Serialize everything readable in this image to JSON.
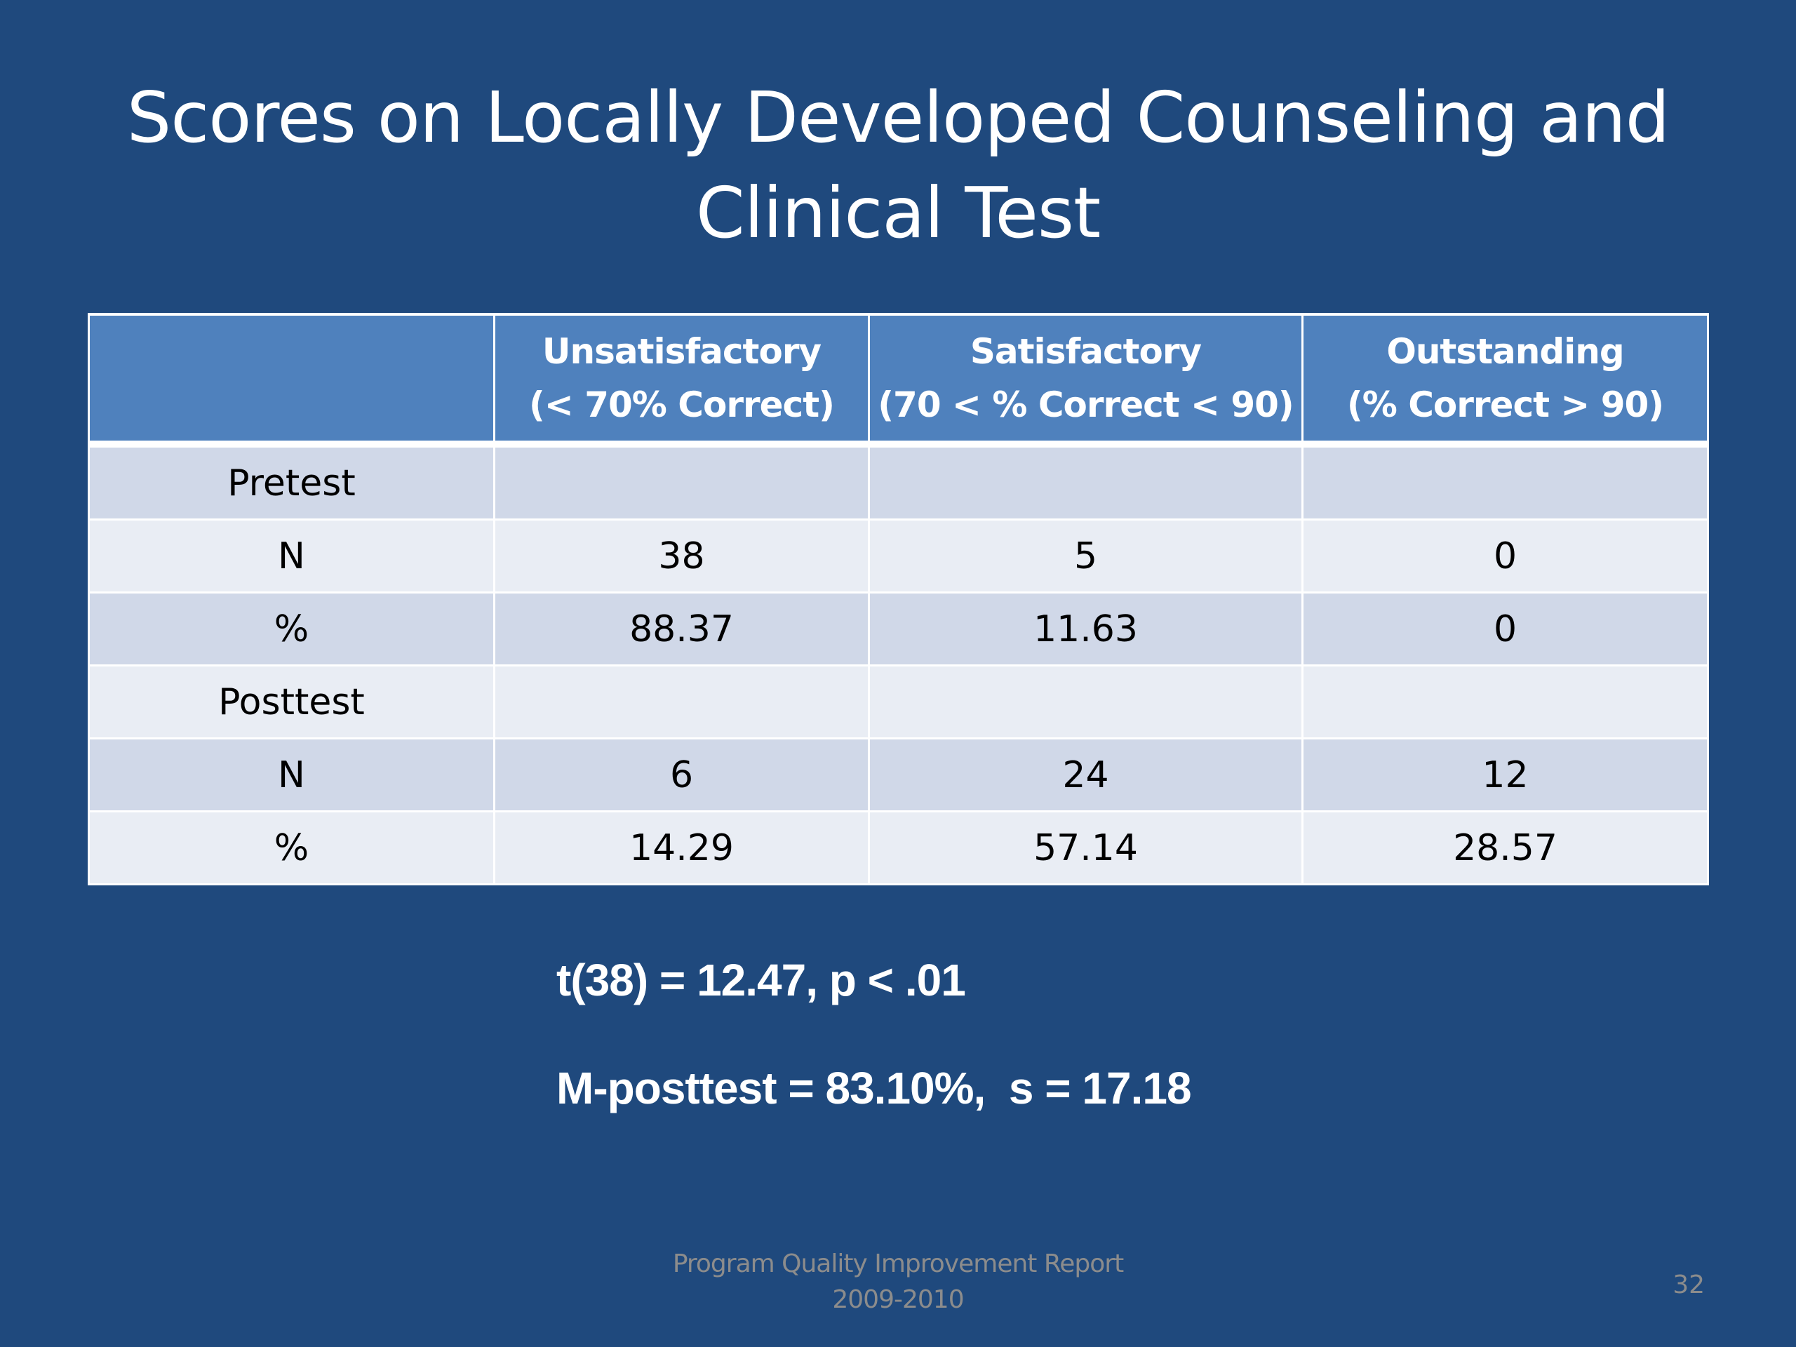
{
  "slide": {
    "title_lines": [
      "Scores on Locally Developed Counseling and",
      "Clinical Test"
    ],
    "table": {
      "headers": [
        {
          "line1": "",
          "line2": ""
        },
        {
          "line1": "Unsatisfactory",
          "line2": "(< 70% Correct)"
        },
        {
          "line1": "Satisfactory",
          "line2": "(70 < % Correct < 90)"
        },
        {
          "line1": "Outstanding",
          "line2": "(% Correct > 90)"
        }
      ],
      "rows": [
        [
          "Pretest",
          "",
          "",
          ""
        ],
        [
          "N",
          "38",
          "5",
          "0"
        ],
        [
          "%",
          "88.37",
          "11.63",
          "0"
        ],
        [
          "Posttest",
          "",
          "",
          ""
        ],
        [
          "N",
          "6",
          "24",
          "12"
        ],
        [
          "%",
          "14.29",
          "57.14",
          "28.57"
        ]
      ]
    },
    "stats": {
      "t_test": "t(38) = 12.47, p < .01",
      "posttest_mean": "M-posttest = 83.10%,  s = 17.18"
    },
    "footer": {
      "line1": "Program Quality Improvement Report",
      "line2": "2009-2010",
      "page_number": "32"
    },
    "colors": {
      "background": "#1f497d",
      "header_fill": "#4f81bd",
      "row_band_dark": "#d0d8e8",
      "row_band_light": "#e9edf4",
      "footer_text": "#8c8c8c"
    }
  }
}
